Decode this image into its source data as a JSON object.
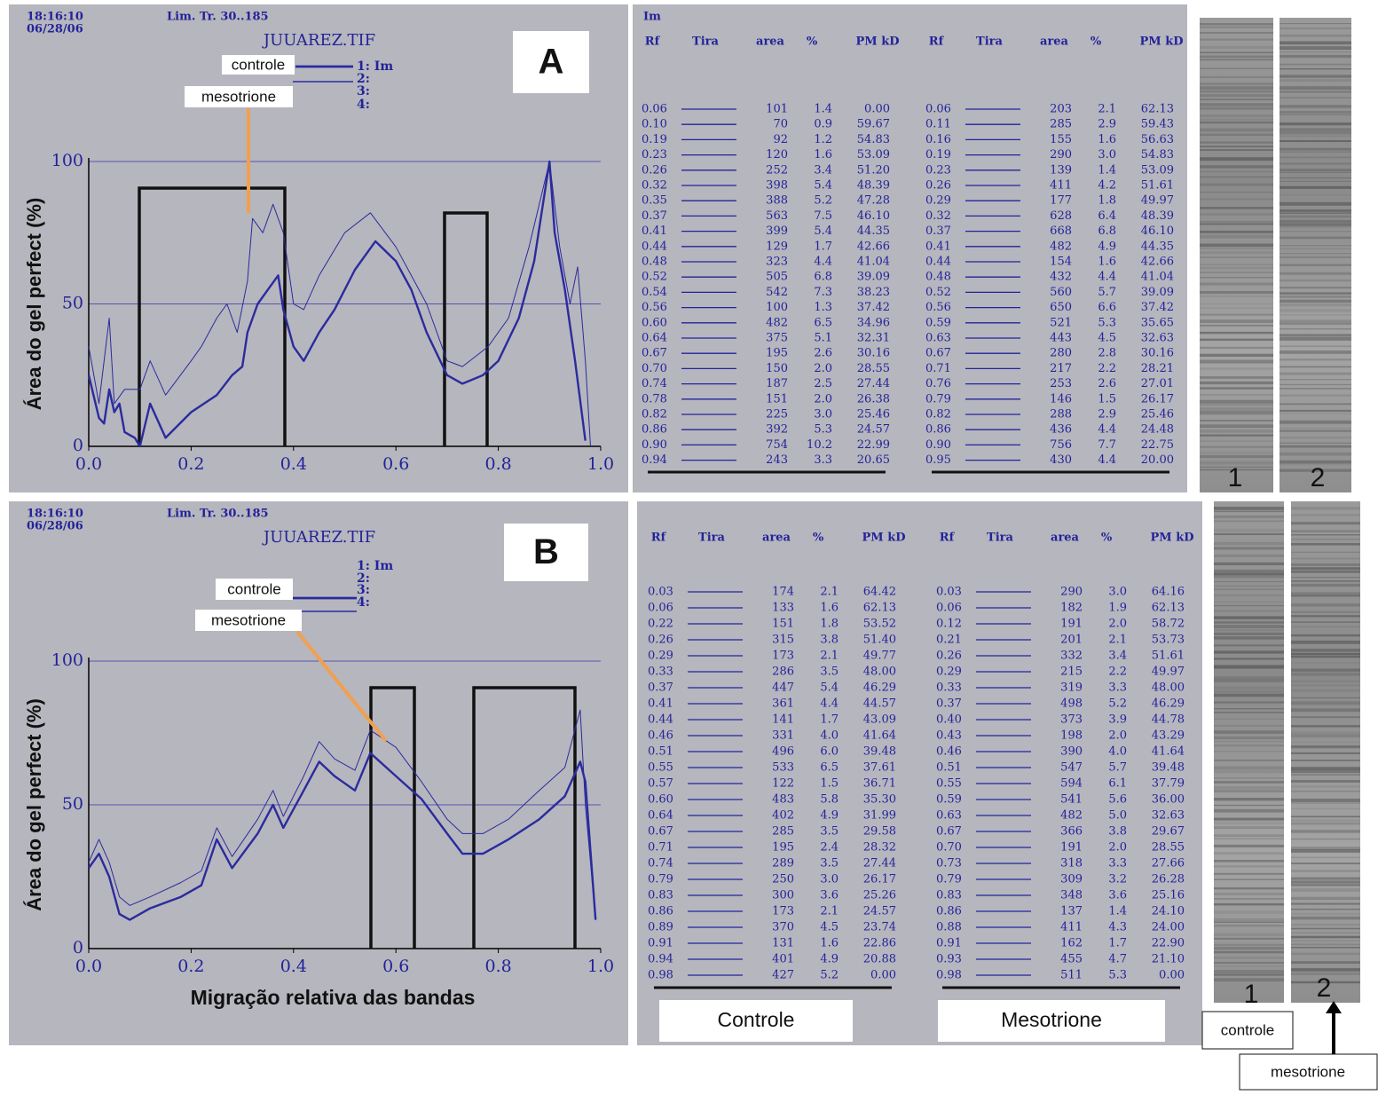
{
  "chart_data": [
    {
      "type": "line",
      "time": "18:16:10",
      "date": "06/28/06",
      "limits": "Lim. Tr. 30..185",
      "file": "JUUAREZ.TIF",
      "panel": "A",
      "legend": [
        "1: Im",
        "2:",
        "3:",
        "4:"
      ],
      "y_label": "Área do gel perfect (%)",
      "xlim": [
        0,
        1
      ],
      "ylim": [
        0,
        100
      ],
      "xticks": [
        {
          "value": 0,
          "label": "0.0"
        },
        {
          "value": 0.2,
          "label": "0.2"
        },
        {
          "value": 0.4,
          "label": "0.4"
        },
        {
          "value": 0.6,
          "label": "0.6"
        },
        {
          "value": 0.8,
          "label": "0.8"
        },
        {
          "value": 1,
          "label": "1.0"
        }
      ],
      "yticks": [
        0,
        50,
        100
      ],
      "grid": true,
      "series": [
        {
          "name": "controle",
          "color": "#2b2b9e",
          "width": 2.4,
          "x": [
            0,
            0.02,
            0.03,
            0.04,
            0.05,
            0.06,
            0.07,
            0.09,
            0.1,
            0.12,
            0.15,
            0.2,
            0.25,
            0.28,
            0.3,
            0.31,
            0.33,
            0.35,
            0.37,
            0.38,
            0.4,
            0.42,
            0.45,
            0.48,
            0.52,
            0.56,
            0.6,
            0.63,
            0.66,
            0.7,
            0.73,
            0.77,
            0.8,
            0.84,
            0.87,
            0.9,
            0.91,
            0.93,
            0.95,
            0.97
          ],
          "values": [
            25,
            10,
            8,
            20,
            12,
            15,
            5,
            3,
            0,
            15,
            3,
            12,
            18,
            25,
            28,
            40,
            50,
            55,
            60,
            48,
            35,
            30,
            40,
            48,
            62,
            72,
            65,
            55,
            40,
            25,
            22,
            25,
            30,
            45,
            65,
            100,
            75,
            55,
            30,
            2
          ]
        },
        {
          "name": "mesotrione",
          "color": "#2b2b9e",
          "width": 1,
          "x": [
            0,
            0.02,
            0.04,
            0.05,
            0.07,
            0.1,
            0.12,
            0.15,
            0.2,
            0.22,
            0.25,
            0.27,
            0.29,
            0.31,
            0.32,
            0.34,
            0.36,
            0.38,
            0.4,
            0.42,
            0.45,
            0.5,
            0.55,
            0.6,
            0.63,
            0.66,
            0.7,
            0.73,
            0.78,
            0.82,
            0.86,
            0.9,
            0.92,
            0.94,
            0.955,
            0.97,
            0.98
          ],
          "values": [
            35,
            15,
            45,
            15,
            20,
            20,
            30,
            18,
            30,
            35,
            45,
            50,
            40,
            58,
            80,
            75,
            85,
            75,
            50,
            48,
            60,
            75,
            82,
            70,
            60,
            50,
            30,
            28,
            35,
            45,
            70,
            100,
            70,
            50,
            63,
            30,
            0
          ]
        }
      ]
    },
    {
      "type": "line",
      "time": "18:16:10",
      "date": "06/28/06",
      "limits": "Lim. Tr. 30..185",
      "file": "JUUAREZ.TIF",
      "panel": "B",
      "legend": [
        "1: Im",
        "2:",
        "3:",
        "4:"
      ],
      "y_label": "Área do gel perfect (%)",
      "x_label": "Migração relativa das bandas",
      "xlim": [
        0,
        1
      ],
      "ylim": [
        0,
        100
      ],
      "xticks": [
        {
          "value": 0,
          "label": "0.0"
        },
        {
          "value": 0.2,
          "label": "0.2"
        },
        {
          "value": 0.4,
          "label": "0.4"
        },
        {
          "value": 0.6,
          "label": "0.6"
        },
        {
          "value": 0.8,
          "label": "0.8"
        },
        {
          "value": 1,
          "label": "1.0"
        }
      ],
      "yticks": [
        0,
        50,
        100
      ],
      "grid": true,
      "series": [
        {
          "name": "controle",
          "color": "#2b2b9e",
          "width": 2.4,
          "x": [
            0,
            0.02,
            0.04,
            0.06,
            0.08,
            0.12,
            0.18,
            0.22,
            0.25,
            0.28,
            0.33,
            0.36,
            0.38,
            0.42,
            0.45,
            0.48,
            0.52,
            0.55,
            0.6,
            0.65,
            0.7,
            0.73,
            0.77,
            0.82,
            0.88,
            0.93,
            0.96,
            0.97,
            0.99
          ],
          "values": [
            28,
            33,
            25,
            12,
            10,
            14,
            18,
            22,
            38,
            28,
            40,
            50,
            42,
            55,
            65,
            60,
            55,
            68,
            60,
            52,
            40,
            33,
            33,
            38,
            45,
            53,
            65,
            58,
            10
          ]
        },
        {
          "name": "mesotrione",
          "color": "#2b2b9e",
          "width": 1,
          "x": [
            0,
            0.02,
            0.04,
            0.06,
            0.08,
            0.12,
            0.18,
            0.22,
            0.25,
            0.28,
            0.33,
            0.36,
            0.38,
            0.42,
            0.45,
            0.48,
            0.52,
            0.55,
            0.6,
            0.65,
            0.7,
            0.73,
            0.77,
            0.82,
            0.88,
            0.93,
            0.96,
            0.97,
            0.99
          ],
          "values": [
            30,
            38,
            30,
            18,
            15,
            18,
            23,
            27,
            42,
            32,
            45,
            55,
            46,
            60,
            72,
            66,
            62,
            76,
            70,
            58,
            45,
            40,
            40,
            45,
            55,
            63,
            83,
            50,
            10
          ]
        }
      ]
    }
  ],
  "tables": [
    {
      "header": "Im",
      "columns": [
        "Rf",
        "Tira",
        "area",
        "%",
        "PM kD"
      ],
      "groups": [
        {
          "rows": [
            [
              "0.06",
              "101",
              "1.4",
              "0.00"
            ],
            [
              "0.10",
              "70",
              "0.9",
              "59.67"
            ],
            [
              "0.19",
              "92",
              "1.2",
              "54.83"
            ],
            [
              "0.23",
              "120",
              "1.6",
              "53.09"
            ],
            [
              "0.26",
              "252",
              "3.4",
              "51.20"
            ],
            [
              "0.32",
              "398",
              "5.4",
              "48.39"
            ],
            [
              "0.35",
              "388",
              "5.2",
              "47.28"
            ],
            [
              "0.37",
              "563",
              "7.5",
              "46.10"
            ],
            [
              "0.41",
              "399",
              "5.4",
              "44.35"
            ],
            [
              "0.44",
              "129",
              "1.7",
              "42.66"
            ],
            [
              "0.48",
              "323",
              "4.4",
              "41.04"
            ],
            [
              "0.52",
              "505",
              "6.8",
              "39.09"
            ],
            [
              "0.54",
              "542",
              "7.3",
              "38.23"
            ],
            [
              "0.56",
              "100",
              "1.3",
              "37.42"
            ],
            [
              "0.60",
              "482",
              "6.5",
              "34.96"
            ],
            [
              "0.64",
              "375",
              "5.1",
              "32.31"
            ],
            [
              "0.67",
              "195",
              "2.6",
              "30.16"
            ],
            [
              "0.70",
              "150",
              "2.0",
              "28.55"
            ],
            [
              "0.74",
              "187",
              "2.5",
              "27.44"
            ],
            [
              "0.78",
              "151",
              "2.0",
              "26.38"
            ],
            [
              "0.82",
              "225",
              "3.0",
              "25.46"
            ],
            [
              "0.86",
              "392",
              "5.3",
              "24.57"
            ],
            [
              "0.90",
              "754",
              "10.2",
              "22.99"
            ],
            [
              "0.94",
              "243",
              "3.3",
              "20.65"
            ]
          ]
        },
        {
          "rows": [
            [
              "0.06",
              "203",
              "2.1",
              "62.13"
            ],
            [
              "0.11",
              "285",
              "2.9",
              "59.43"
            ],
            [
              "0.16",
              "155",
              "1.6",
              "56.63"
            ],
            [
              "0.19",
              "290",
              "3.0",
              "54.83"
            ],
            [
              "0.23",
              "139",
              "1.4",
              "53.09"
            ],
            [
              "0.26",
              "411",
              "4.2",
              "51.61"
            ],
            [
              "0.29",
              "177",
              "1.8",
              "49.97"
            ],
            [
              "0.32",
              "628",
              "6.4",
              "48.39"
            ],
            [
              "0.37",
              "668",
              "6.8",
              "46.10"
            ],
            [
              "0.41",
              "482",
              "4.9",
              "44.35"
            ],
            [
              "0.44",
              "154",
              "1.6",
              "42.66"
            ],
            [
              "0.48",
              "432",
              "4.4",
              "41.04"
            ],
            [
              "0.52",
              "560",
              "5.7",
              "39.09"
            ],
            [
              "0.56",
              "650",
              "6.6",
              "37.42"
            ],
            [
              "0.59",
              "521",
              "5.3",
              "35.65"
            ],
            [
              "0.63",
              "443",
              "4.5",
              "32.63"
            ],
            [
              "0.67",
              "280",
              "2.8",
              "30.16"
            ],
            [
              "0.71",
              "217",
              "2.2",
              "28.21"
            ],
            [
              "0.76",
              "253",
              "2.6",
              "27.01"
            ],
            [
              "0.79",
              "146",
              "1.5",
              "26.17"
            ],
            [
              "0.82",
              "288",
              "2.9",
              "25.46"
            ],
            [
              "0.86",
              "436",
              "4.4",
              "24.48"
            ],
            [
              "0.90",
              "756",
              "7.7",
              "22.75"
            ],
            [
              "0.95",
              "430",
              "4.4",
              "20.00"
            ]
          ]
        }
      ]
    },
    {
      "columns": [
        "Rf",
        "Tira",
        "area",
        "%",
        "PM kD"
      ],
      "groups": [
        {
          "label": "Controle",
          "rows": [
            [
              "0.03",
              "174",
              "2.1",
              "64.42"
            ],
            [
              "0.06",
              "133",
              "1.6",
              "62.13"
            ],
            [
              "0.22",
              "151",
              "1.8",
              "53.52"
            ],
            [
              "0.26",
              "315",
              "3.8",
              "51.40"
            ],
            [
              "0.29",
              "173",
              "2.1",
              "49.77"
            ],
            [
              "0.33",
              "286",
              "3.5",
              "48.00"
            ],
            [
              "0.37",
              "447",
              "5.4",
              "46.29"
            ],
            [
              "0.41",
              "361",
              "4.4",
              "44.57"
            ],
            [
              "0.44",
              "141",
              "1.7",
              "43.09"
            ],
            [
              "0.46",
              "331",
              "4.0",
              "41.64"
            ],
            [
              "0.51",
              "496",
              "6.0",
              "39.48"
            ],
            [
              "0.55",
              "533",
              "6.5",
              "37.61"
            ],
            [
              "0.57",
              "122",
              "1.5",
              "36.71"
            ],
            [
              "0.60",
              "483",
              "5.8",
              "35.30"
            ],
            [
              "0.64",
              "402",
              "4.9",
              "31.99"
            ],
            [
              "0.67",
              "285",
              "3.5",
              "29.58"
            ],
            [
              "0.71",
              "195",
              "2.4",
              "28.32"
            ],
            [
              "0.74",
              "289",
              "3.5",
              "27.44"
            ],
            [
              "0.79",
              "250",
              "3.0",
              "26.17"
            ],
            [
              "0.83",
              "300",
              "3.6",
              "25.26"
            ],
            [
              "0.86",
              "173",
              "2.1",
              "24.57"
            ],
            [
              "0.89",
              "370",
              "4.5",
              "23.74"
            ],
            [
              "0.91",
              "131",
              "1.6",
              "22.86"
            ],
            [
              "0.94",
              "401",
              "4.9",
              "20.88"
            ],
            [
              "0.98",
              "427",
              "5.2",
              "0.00"
            ]
          ]
        },
        {
          "label": "Mesotrione",
          "rows": [
            [
              "0.03",
              "290",
              "3.0",
              "64.16"
            ],
            [
              "0.06",
              "182",
              "1.9",
              "62.13"
            ],
            [
              "0.12",
              "191",
              "2.0",
              "58.72"
            ],
            [
              "0.21",
              "201",
              "2.1",
              "53.73"
            ],
            [
              "0.26",
              "332",
              "3.4",
              "51.61"
            ],
            [
              "0.29",
              "215",
              "2.2",
              "49.97"
            ],
            [
              "0.33",
              "319",
              "3.3",
              "48.00"
            ],
            [
              "0.37",
              "498",
              "5.2",
              "46.29"
            ],
            [
              "0.40",
              "373",
              "3.9",
              "44.78"
            ],
            [
              "0.43",
              "198",
              "2.0",
              "43.29"
            ],
            [
              "0.46",
              "390",
              "4.0",
              "41.64"
            ],
            [
              "0.51",
              "547",
              "5.7",
              "39.48"
            ],
            [
              "0.55",
              "594",
              "6.1",
              "37.79"
            ],
            [
              "0.59",
              "541",
              "5.6",
              "36.00"
            ],
            [
              "0.63",
              "482",
              "5.0",
              "32.63"
            ],
            [
              "0.67",
              "366",
              "3.8",
              "29.67"
            ],
            [
              "0.70",
              "191",
              "2.0",
              "28.55"
            ],
            [
              "0.73",
              "318",
              "3.3",
              "27.66"
            ],
            [
              "0.79",
              "309",
              "3.2",
              "26.28"
            ],
            [
              "0.83",
              "348",
              "3.6",
              "25.16"
            ],
            [
              "0.86",
              "137",
              "1.4",
              "24.10"
            ],
            [
              "0.88",
              "411",
              "4.3",
              "24.00"
            ],
            [
              "0.91",
              "162",
              "1.7",
              "22.90"
            ],
            [
              "0.93",
              "455",
              "4.7",
              "21.10"
            ],
            [
              "0.98",
              "511",
              "5.3",
              "0.00"
            ]
          ]
        }
      ]
    }
  ],
  "gels": [
    {
      "lanes": [
        "1",
        "2"
      ]
    },
    {
      "lanes": [
        "1",
        "2"
      ],
      "legend": [
        "controle",
        "mesotrione"
      ]
    }
  ]
}
